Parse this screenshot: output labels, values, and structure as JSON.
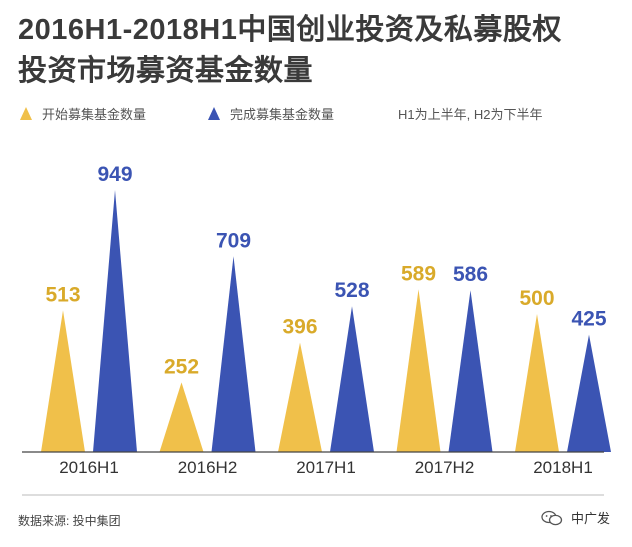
{
  "title_lines": [
    "2016H1-2018H1中国创业投资及私募股权",
    "投资市场募资基金数量"
  ],
  "legend": {
    "series1": "开始募集基金数量",
    "series2": "完成募集基金数量",
    "note": "H1为上半年, H2为下半年"
  },
  "source": "数据来源: 投中集团",
  "brand": "中广发",
  "colors": {
    "series1": "#f0c04a",
    "series2": "#3b54b3",
    "label1": "#d9aa2a",
    "label2": "#3b54b3",
    "axis": "#444444"
  },
  "chart_data": {
    "type": "bar",
    "categories": [
      "2016H1",
      "2016H2",
      "2017H1",
      "2017H2",
      "2018H1"
    ],
    "series": [
      {
        "name": "开始募集基金数量",
        "values": [
          513,
          252,
          396,
          589,
          500
        ]
      },
      {
        "name": "完成募集基金数量",
        "values": [
          949,
          709,
          528,
          586,
          425
        ]
      }
    ],
    "marker": "triangle",
    "grid": false,
    "legend_position": "top-left"
  }
}
